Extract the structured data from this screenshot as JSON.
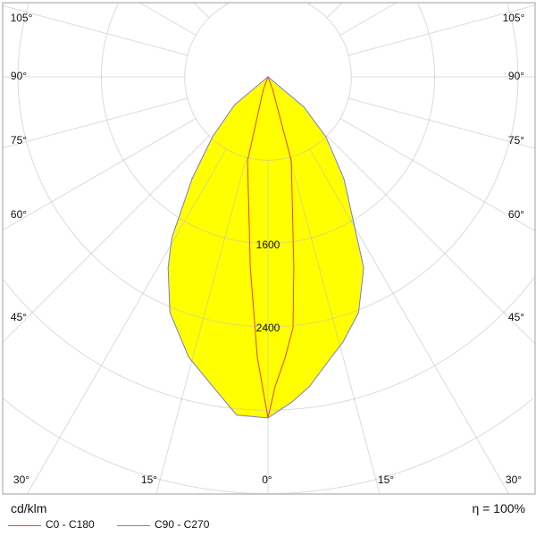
{
  "chart_data": {
    "type": "polar",
    "unit_label": "cd/klm",
    "efficiency_label": "η = 100%",
    "radial_ticks": [
      800,
      1600,
      2400,
      3200,
      4000,
      4800,
      5600,
      6400
    ],
    "radial_tick_labels_shown": [
      "1600",
      "2400"
    ],
    "angle_tick_labels": [
      "105°",
      "90°",
      "75°",
      "60°",
      "45°",
      "30°",
      "15°",
      "0°",
      "15°",
      "30°",
      "45°",
      "60°",
      "75°",
      "90°",
      "105°"
    ],
    "angle_step_deg": 15,
    "grid": true,
    "legend_placement": "bottom-left",
    "series": [
      {
        "name": "C0 - C180",
        "color": "#e2463a",
        "fill": false,
        "points": [
          [
            90,
            0
          ],
          [
            20,
            130
          ],
          [
            15.5,
            836
          ],
          [
            7.7,
            1850
          ],
          [
            5.7,
            2420
          ],
          [
            3.5,
            2700
          ],
          [
            1.3,
            2975
          ],
          [
            0,
            3275
          ],
          [
            -2.2,
            2690
          ],
          [
            -5.3,
            1840
          ],
          [
            -13.7,
            830
          ],
          [
            -20,
            130
          ],
          [
            -90,
            0
          ]
        ]
      },
      {
        "name": "C90 - C270",
        "color": "#7b7bd6",
        "fill": "#ffff00",
        "points": [
          [
            90,
            0
          ],
          [
            50,
            450
          ],
          [
            44,
            800
          ],
          [
            36.7,
            1220
          ],
          [
            26.6,
            2050
          ],
          [
            21,
            2425
          ],
          [
            15.8,
            2645
          ],
          [
            12.7,
            2760
          ],
          [
            7.6,
            3000
          ],
          [
            4.2,
            3130
          ],
          [
            0,
            3275
          ],
          [
            -2.3,
            3265
          ],
          [
            -5.3,
            3260
          ],
          [
            -10.1,
            3020
          ],
          [
            -15.8,
            2795
          ],
          [
            -22.6,
            2450
          ],
          [
            -27.6,
            2070
          ],
          [
            -30.8,
            1805
          ],
          [
            -36.7,
            1220
          ],
          [
            -42.8,
            782
          ],
          [
            -50,
            420
          ],
          [
            -90,
            0
          ]
        ]
      }
    ]
  }
}
